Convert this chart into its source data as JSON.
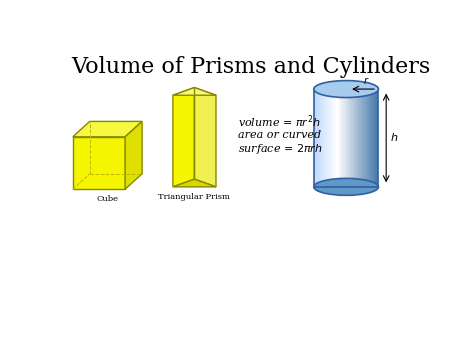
{
  "title": "Volume of Prisms and Cylinders",
  "title_fontsize": 16,
  "bg_color": "#ffffff",
  "formula_line1": "volume = πr²h",
  "formula_line2": "area or curved",
  "formula_line3": "surface = 2πrh",
  "cube_label": "Cube",
  "prism_label": "Triangular Prism",
  "cube_color_face": "#f5f500",
  "cube_color_right": "#e0e000",
  "cube_color_top": "#f8f840",
  "cube_edge": "#888800",
  "cube_dashed": "#bbbb00",
  "cylinder_body": "#7ab8e8",
  "cylinder_top": "#b0d4f0",
  "cylinder_dark": "#4080b0",
  "label_fontsize": 6,
  "formula_fontsize": 8
}
